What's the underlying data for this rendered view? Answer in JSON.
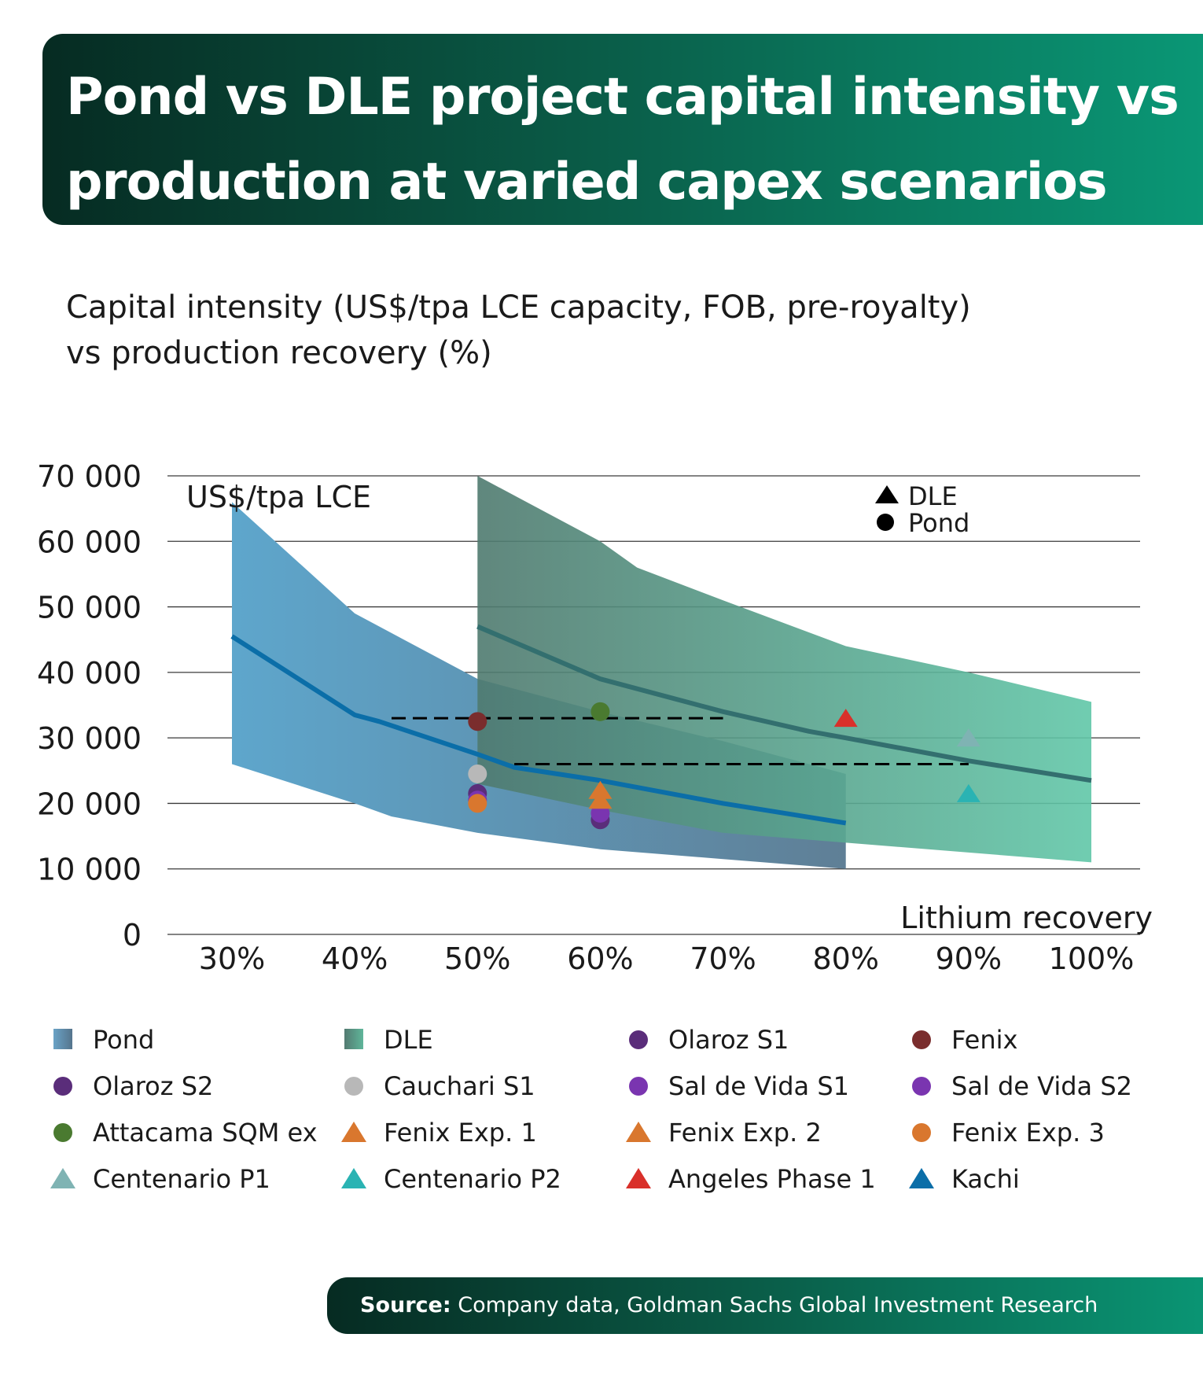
{
  "header": {
    "title_line1": "Pond vs DLE project capital intensity vs",
    "title_line2": "production at varied capex scenarios"
  },
  "subtitle": {
    "line1": "Capital intensity (US$/tpa LCE capacity, FOB, pre-royalty)",
    "line2": "vs production recovery (%)"
  },
  "source": {
    "label": "Source:",
    "text": "Company data, Goldman Sachs Global Investment Research"
  },
  "colors": {
    "banner_start": "#062b22",
    "banner_end": "#0a9977",
    "pond": "#4f8fb6",
    "dle": "#3f7f6e",
    "pond_line": "#0b6ea8",
    "dle_line": "#336f6f"
  },
  "chart_data": {
    "type": "scatter",
    "ylabel": "US$/tpa LCE",
    "xlabel": "Lithium recovery",
    "ylim": [
      0,
      70000
    ],
    "xlim": [
      25,
      102
    ],
    "y_ticks": [
      0,
      10000,
      20000,
      30000,
      40000,
      50000,
      60000,
      70000
    ],
    "y_tick_labels": [
      "0",
      "10 000",
      "20 000",
      "30 000",
      "40 000",
      "50 000",
      "60 000",
      "70 000"
    ],
    "x_ticks": [
      30,
      40,
      50,
      60,
      70,
      80,
      90,
      100
    ],
    "x_tick_labels": [
      "30%",
      "40%",
      "50%",
      "60%",
      "70%",
      "80%",
      "90%",
      "100%"
    ],
    "grid": true,
    "shape_legend": [
      {
        "shape": "triangle",
        "label": "DLE"
      },
      {
        "shape": "circle",
        "label": "Pond"
      }
    ],
    "bands": [
      {
        "name": "Pond",
        "color_start": "#5ea6cc",
        "color_end": "#5f7f96",
        "upper": [
          [
            30,
            66000
          ],
          [
            40,
            49000
          ],
          [
            50,
            39000
          ],
          [
            60,
            34000
          ],
          [
            70,
            29500
          ],
          [
            80,
            24500
          ]
        ],
        "lower": [
          [
            30,
            26000
          ],
          [
            40,
            20000
          ],
          [
            43,
            18000
          ],
          [
            50,
            15500
          ],
          [
            60,
            13000
          ],
          [
            70,
            11500
          ],
          [
            80,
            10000
          ]
        ],
        "line": [
          [
            30,
            45500
          ],
          [
            40,
            33500
          ],
          [
            42,
            32500
          ],
          [
            50,
            27500
          ],
          [
            53,
            25500
          ],
          [
            60,
            23500
          ],
          [
            70,
            20000
          ],
          [
            80,
            17000
          ]
        ],
        "line_color": "#0b6ea8"
      },
      {
        "name": "DLE",
        "color_start": "#4f7a6f",
        "color_end": "#61c7a8",
        "upper": [
          [
            50,
            70000
          ],
          [
            60,
            60000
          ],
          [
            63,
            56000
          ],
          [
            70,
            51000
          ],
          [
            80,
            44000
          ],
          [
            90,
            40000
          ],
          [
            100,
            35500
          ]
        ],
        "lower": [
          [
            50,
            23000
          ],
          [
            60,
            19000
          ],
          [
            70,
            15500
          ],
          [
            80,
            14000
          ],
          [
            90,
            12500
          ],
          [
            100,
            11000
          ]
        ],
        "line": [
          [
            50,
            47000
          ],
          [
            60,
            39000
          ],
          [
            70,
            34000
          ],
          [
            77,
            31000
          ],
          [
            80,
            30000
          ],
          [
            90,
            26500
          ],
          [
            100,
            23500
          ]
        ],
        "line_color": "#336f6f"
      }
    ],
    "reference_lines": [
      {
        "y": 33000,
        "x_start": 43,
        "x_end": 70
      },
      {
        "y": 26000,
        "x_start": 53,
        "x_end": 90
      }
    ],
    "series": [
      {
        "name": "Olaroz S1",
        "shape": "circle",
        "color": "#5a2d7a",
        "points": [
          [
            50,
            21500
          ]
        ]
      },
      {
        "name": "Fenix",
        "shape": "circle",
        "color": "#7a2d2d",
        "points": [
          [
            50,
            32500
          ]
        ]
      },
      {
        "name": "Olaroz S2",
        "shape": "circle",
        "color": "#5a2d7a",
        "points": [
          [
            60,
            17500
          ]
        ]
      },
      {
        "name": "Cauchari S1",
        "shape": "circle",
        "color": "#b8b8b8",
        "points": [
          [
            50,
            24500
          ]
        ]
      },
      {
        "name": "Sal de Vida S1",
        "shape": "circle",
        "color": "#7a35b0",
        "points": [
          [
            50,
            20500
          ]
        ]
      },
      {
        "name": "Sal de Vida S2",
        "shape": "circle",
        "color": "#7a35b0",
        "points": [
          [
            60,
            18500
          ]
        ]
      },
      {
        "name": "Attacama SQM ex",
        "shape": "circle",
        "color": "#4a7a30",
        "points": [
          [
            60,
            34000
          ]
        ]
      },
      {
        "name": "Fenix Exp. 1",
        "shape": "triangle",
        "color": "#d9772e",
        "points": [
          [
            60,
            22000
          ]
        ]
      },
      {
        "name": "Fenix Exp. 2",
        "shape": "triangle",
        "color": "#d9772e",
        "points": [
          [
            60,
            20500
          ]
        ]
      },
      {
        "name": "Fenix Exp. 3",
        "shape": "circle",
        "color": "#d9772e",
        "points": [
          [
            50,
            20000
          ]
        ]
      },
      {
        "name": "Centenario P1",
        "shape": "triangle",
        "color": "#7fb3b3",
        "points": [
          [
            90,
            30000
          ]
        ]
      },
      {
        "name": "Centenario P2",
        "shape": "triangle",
        "color": "#2ab3b3",
        "points": [
          [
            90,
            21500
          ]
        ]
      },
      {
        "name": "Angeles Phase 1",
        "shape": "triangle",
        "color": "#d9302a",
        "points": [
          [
            80,
            33000
          ]
        ]
      },
      {
        "name": "Kachi",
        "shape": "triangle",
        "color": "#0b6ea8",
        "points": []
      }
    ],
    "legend": [
      {
        "label": "Pond",
        "kind": "square",
        "color_start": "#6aa3c6",
        "color_end": "#55748c"
      },
      {
        "label": "DLE",
        "kind": "square",
        "color_start": "#537a71",
        "color_end": "#5fb69a"
      },
      {
        "label": "Olaroz S1",
        "kind": "circle",
        "color": "#5a2d7a"
      },
      {
        "label": "Fenix",
        "kind": "circle",
        "color": "#7a2d2d"
      },
      {
        "label": "Olaroz S2",
        "kind": "circle",
        "color": "#5a2d7a"
      },
      {
        "label": "Cauchari S1",
        "kind": "circle",
        "color": "#b8b8b8"
      },
      {
        "label": "Sal de Vida S1",
        "kind": "circle",
        "color": "#7a35b0"
      },
      {
        "label": "Sal de Vida S2",
        "kind": "circle",
        "color": "#7a35b0"
      },
      {
        "label": "Attacama SQM ex",
        "kind": "circle",
        "color": "#4a7a30"
      },
      {
        "label": "Fenix Exp. 1",
        "kind": "triangle",
        "color": "#d9772e"
      },
      {
        "label": "Fenix Exp. 2",
        "kind": "triangle",
        "color": "#d9772e"
      },
      {
        "label": "Fenix Exp. 3",
        "kind": "circle",
        "color": "#d9772e"
      },
      {
        "label": "Centenario P1",
        "kind": "triangle",
        "color": "#7fb3b3"
      },
      {
        "label": "Centenario P2",
        "kind": "triangle",
        "color": "#2ab3b3"
      },
      {
        "label": "Angeles Phase 1",
        "kind": "triangle",
        "color": "#d9302a"
      },
      {
        "label": "Kachi",
        "kind": "triangle",
        "color": "#0b6ea8"
      }
    ]
  }
}
